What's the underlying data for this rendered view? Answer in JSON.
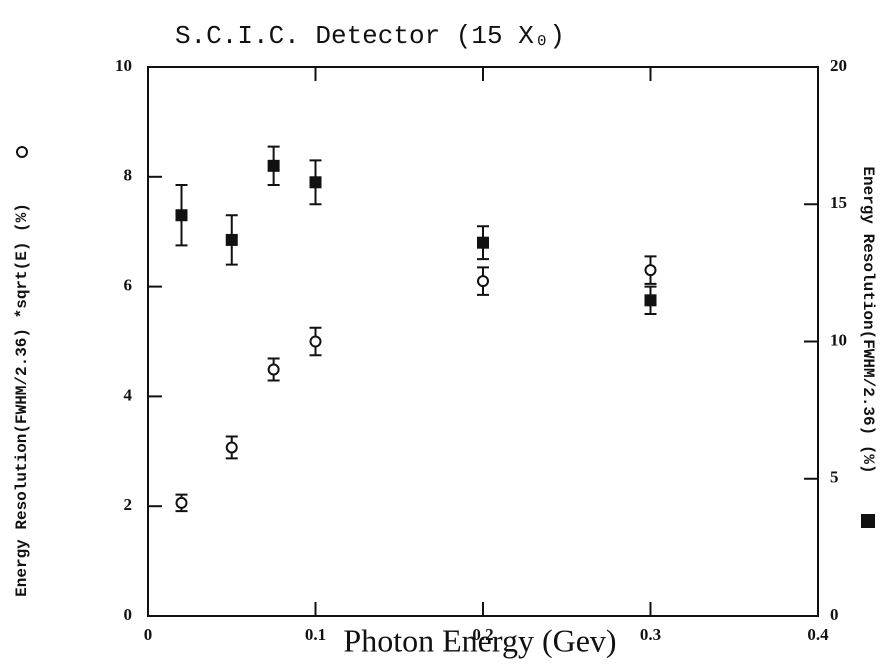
{
  "chart_data": {
    "type": "scatter",
    "title": "S.C.I.C. Detector (15 X₀)",
    "x_label": "Photon Energy (Gev)",
    "y_label": "Energy Resolution(FWHM/2.36) *sqrt(E) (%)",
    "y2_label": "Energy Resolution(FWHM/2.36) (%)",
    "xlim": [
      0,
      0.4
    ],
    "xticks": [
      0,
      0.1,
      0.2,
      0.3,
      0.4
    ],
    "ylim": [
      0,
      10
    ],
    "yticks": [
      0,
      2,
      4,
      6,
      8,
      10
    ],
    "y2lim": [
      0,
      20
    ],
    "y2ticks": [
      0,
      5,
      10,
      15,
      20
    ],
    "series": [
      {
        "marker": "open-circle",
        "color": "#111111",
        "axis": "y",
        "x": [
          0.02,
          0.05,
          0.075,
          0.1,
          0.2,
          0.3
        ],
        "values": [
          2.06,
          3.07,
          4.49,
          5.0,
          6.1,
          6.3
        ],
        "errors": [
          0.15,
          0.2,
          0.2,
          0.25,
          0.25,
          0.25
        ]
      },
      {
        "marker": "filled-square",
        "color": "#111111",
        "axis": "y2",
        "x": [
          0.02,
          0.05,
          0.075,
          0.1,
          0.2,
          0.3
        ],
        "values": [
          14.6,
          13.7,
          16.4,
          15.8,
          13.6,
          11.5
        ],
        "errors": [
          1.1,
          0.9,
          0.7,
          0.8,
          0.6,
          0.5
        ]
      }
    ]
  }
}
